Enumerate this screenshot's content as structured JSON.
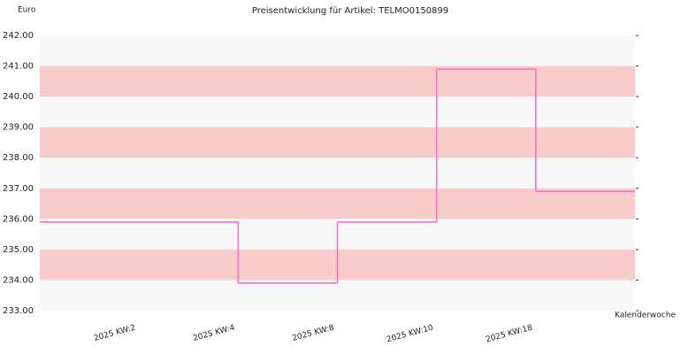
{
  "chart_data": {
    "type": "step",
    "title": "Preisentwicklung für Artikel: TELMO0150899",
    "ylabel": "Euro",
    "xlabel": "Kalenderwoche",
    "categories": [
      "2025 KW:2",
      "2025 KW:4",
      "2025 KW:8",
      "2025 KW:10",
      "2025 KW:18"
    ],
    "values": [
      235.9,
      233.9,
      235.9,
      240.9,
      236.9
    ],
    "color": "#f472c8",
    "band_colors": [
      "#f8f8f8",
      "#f9cccc"
    ],
    "ylim": [
      233,
      242
    ],
    "yticks": [
      {
        "value": 233,
        "label": "233.00"
      },
      {
        "value": 234,
        "label": "234.00"
      },
      {
        "value": 235,
        "label": "235.00"
      },
      {
        "value": 236,
        "label": "236.00"
      },
      {
        "value": 237,
        "label": "237.00"
      },
      {
        "value": 238,
        "label": "238.00"
      },
      {
        "value": 239,
        "label": "239.00"
      },
      {
        "value": 240,
        "label": "240.00"
      },
      {
        "value": 241,
        "label": "241.00"
      },
      {
        "value": 242,
        "label": "242.00"
      }
    ]
  }
}
